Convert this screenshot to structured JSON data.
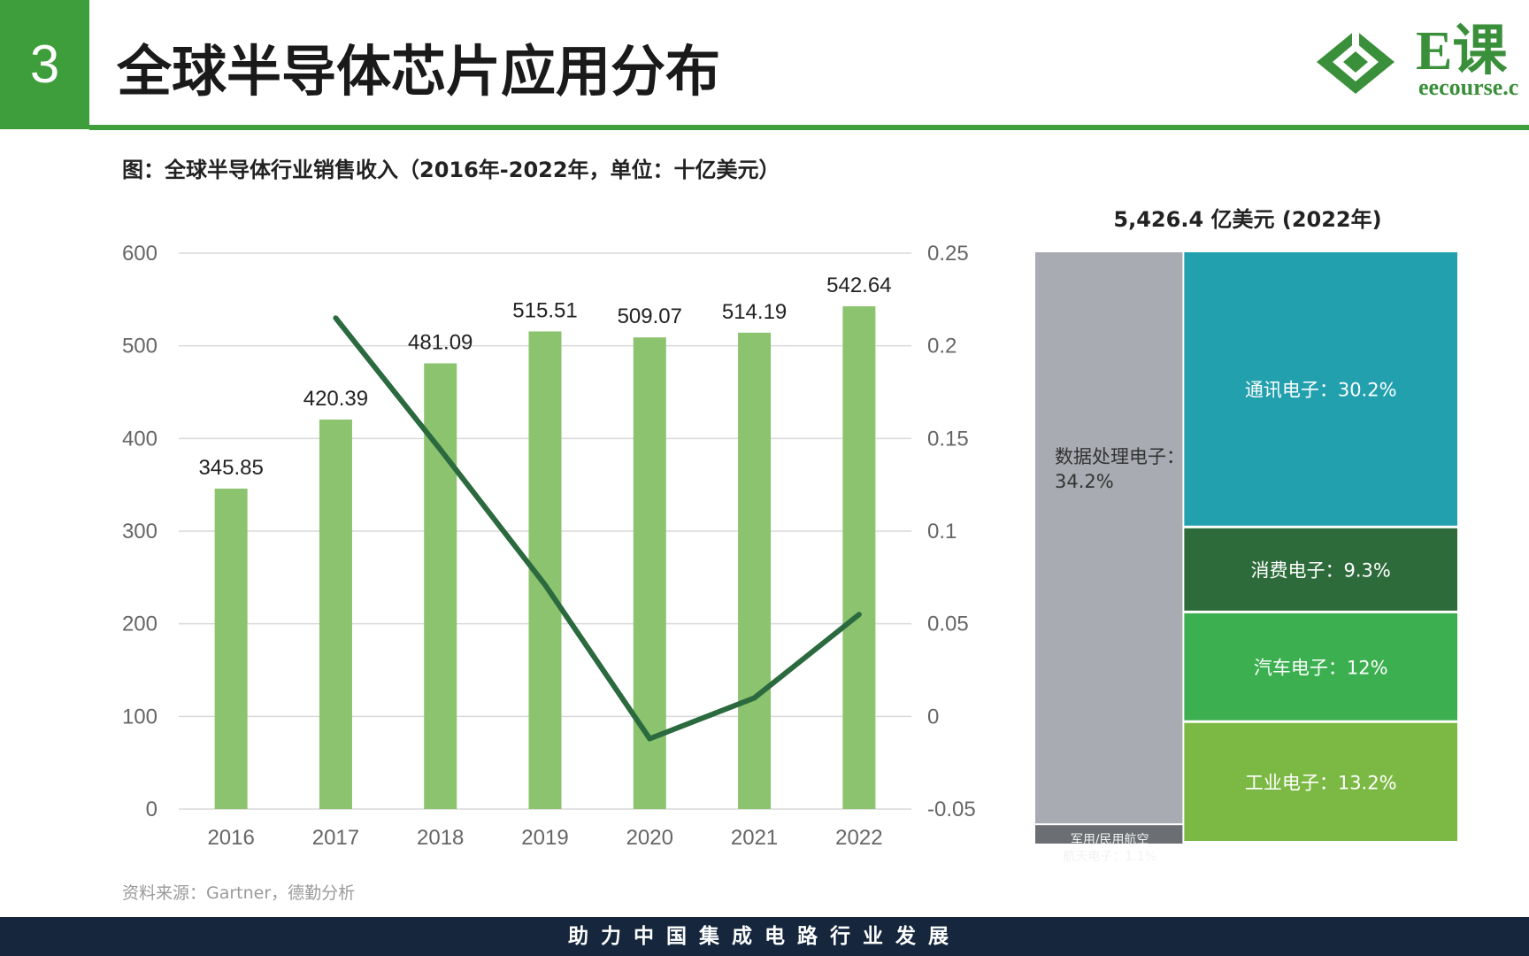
{
  "header": {
    "section_number": "3",
    "title": "全球半导体芯片应用分布",
    "logo_text": "E课",
    "logo_sub": "eecourse.c"
  },
  "subtitle": "图：全球半导体行业销售收入（2016年-2022年，单位：十亿美元）",
  "source": "资料来源：Gartner，德勤分析",
  "footer": "助力中国集成电路行业发展",
  "chart_data": [
    {
      "type": "bar",
      "categories": [
        "2016",
        "2017",
        "2018",
        "2019",
        "2020",
        "2021",
        "2022"
      ],
      "series": [
        {
          "values": [
            345.85,
            420.39,
            481.09,
            515.51,
            509.07,
            514.19,
            542.64
          ],
          "color": "#8cc36e",
          "axis": "left"
        },
        {
          "type": "line",
          "values": [
            null,
            0.215,
            0.144,
            0.071,
            -0.012,
            0.01,
            0.055
          ],
          "color": "#2b6a3e",
          "axis": "right"
        }
      ],
      "data_labels": [
        "345.85",
        "420.39",
        "481.09",
        "515.51",
        "509.07",
        "514.19",
        "542.64"
      ],
      "ylim": [
        0,
        600
      ],
      "y_ticks": [
        "0",
        "100",
        "200",
        "300",
        "400",
        "500",
        "600"
      ],
      "y2lim": [
        -0.05,
        0.25
      ],
      "y2_ticks": [
        "-0.05",
        "0",
        "0.05",
        "0.1",
        "0.15",
        "0.2",
        "0.25"
      ],
      "grid": true
    },
    {
      "type": "treemap",
      "title": "5,426.4 亿美元 (2022年)",
      "segments": [
        {
          "label": "数据处理电子：",
          "value_text": "34.2%",
          "value": 34.2,
          "color": "#a8abb1"
        },
        {
          "label": "军用/民用航空",
          "value_text": "航天电子：1.1%",
          "value": 1.1,
          "color": "#6b6e73"
        },
        {
          "label": "通讯电子：30.2%",
          "value": 30.2,
          "color": "#22a0ae"
        },
        {
          "label": "消费电子：9.3%",
          "value": 9.3,
          "color": "#2e6b3b"
        },
        {
          "label": "汽车电子：12%",
          "value": 12,
          "color": "#3caf50"
        },
        {
          "label": "工业电子：13.2%",
          "value": 13.2,
          "color": "#7cb944"
        }
      ]
    }
  ]
}
